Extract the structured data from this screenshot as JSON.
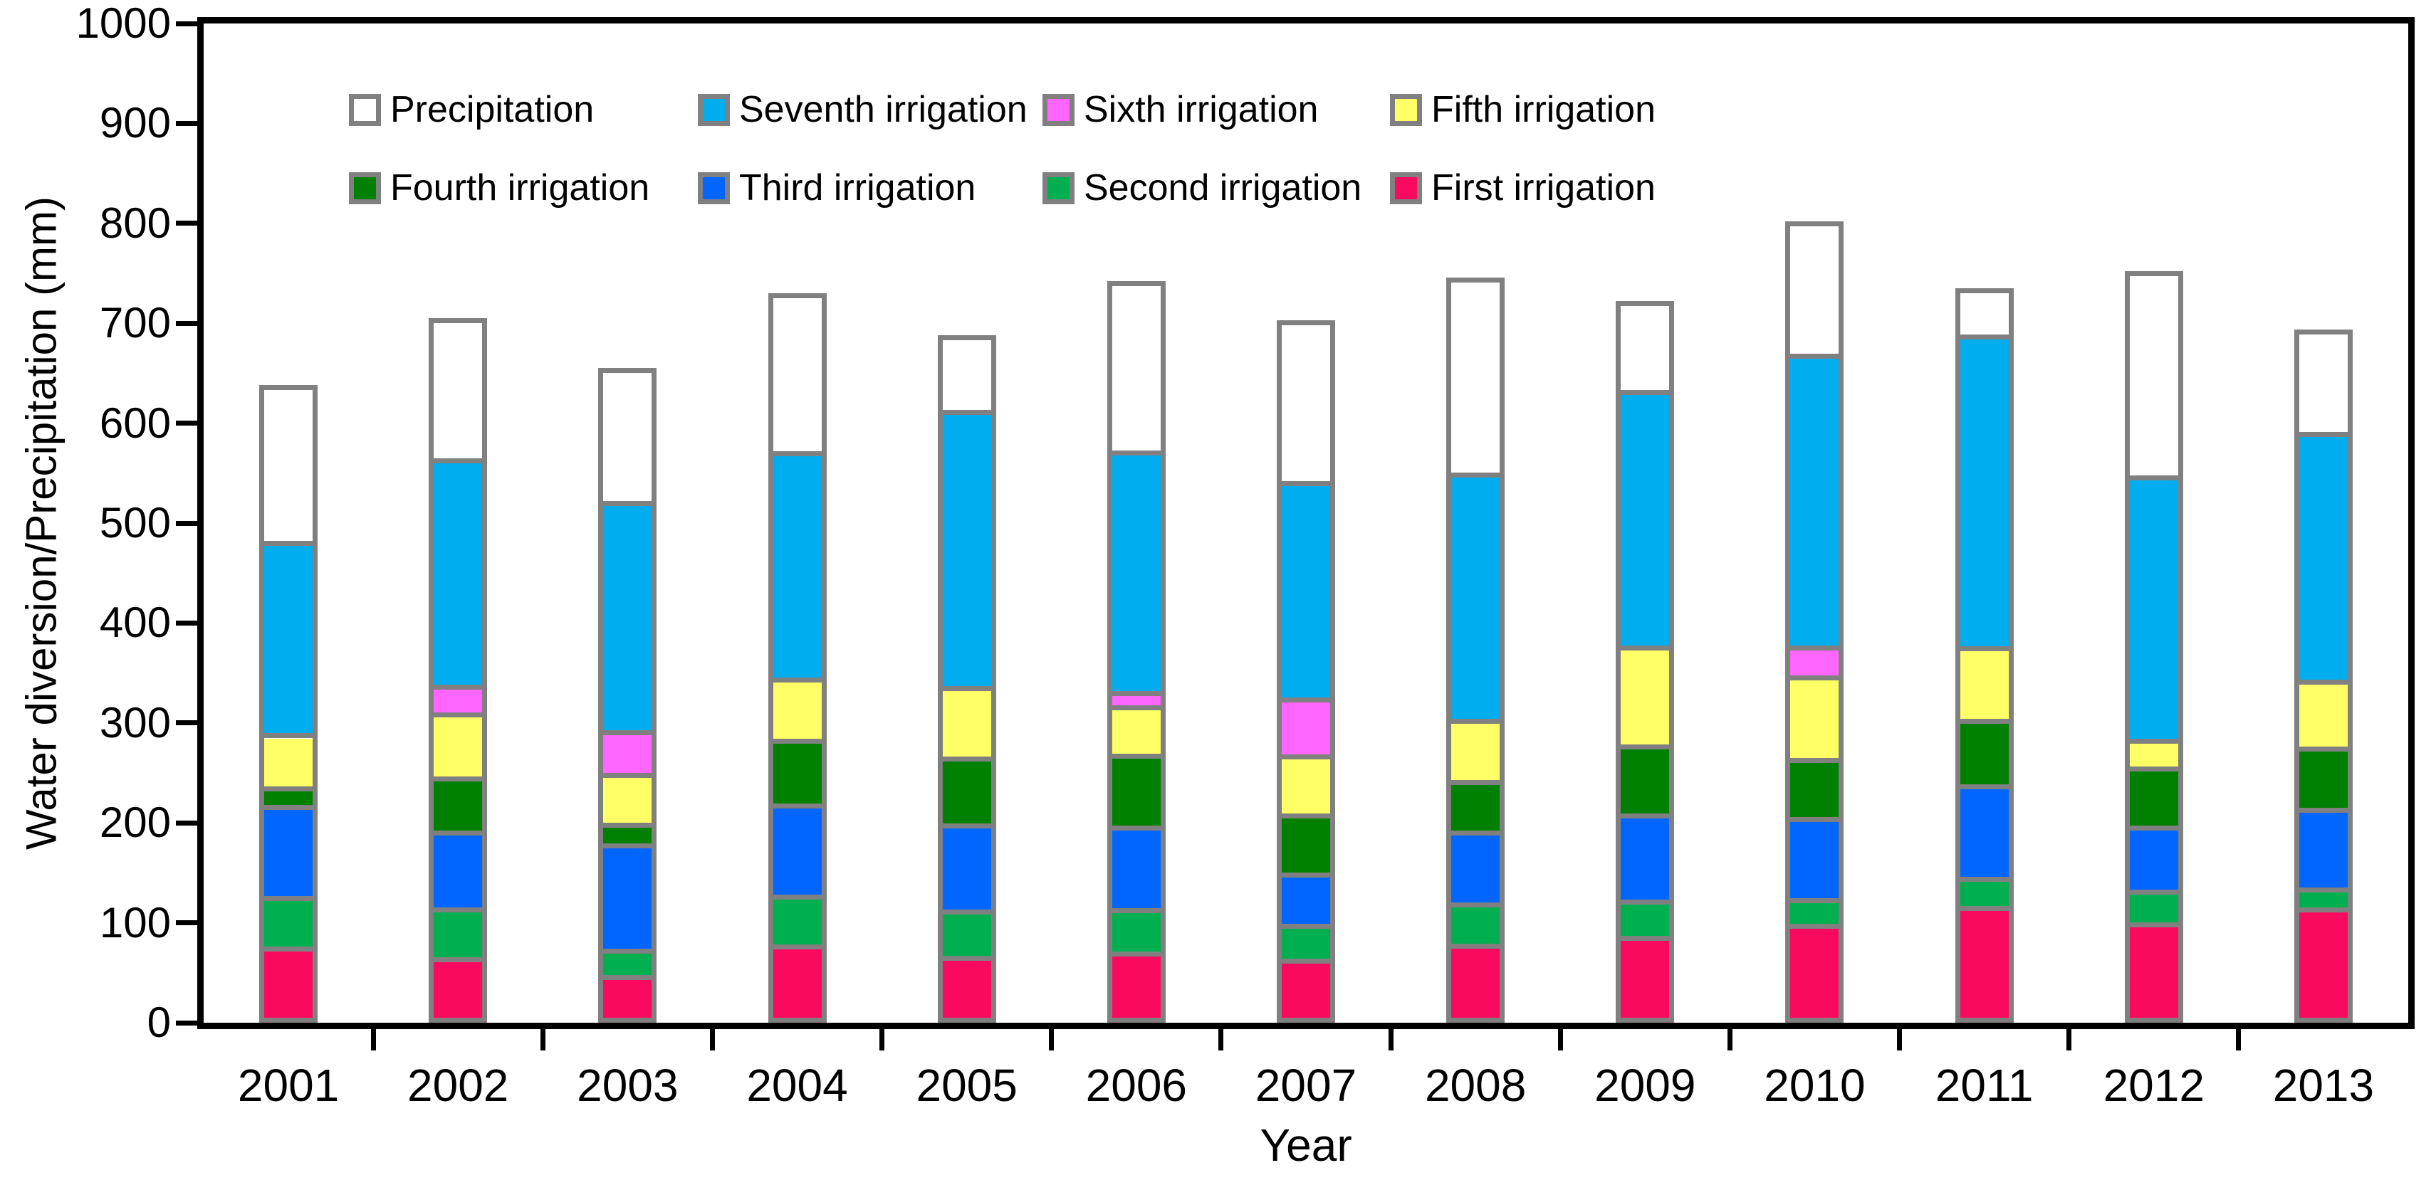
{
  "chart": {
    "y_axis_title": "Water diversion/Precipitation (mm)",
    "x_axis_title": "Year"
  },
  "chart_data": {
    "type": "bar",
    "stacked": true,
    "title": "",
    "xlabel": "Year",
    "ylabel": "Water diversion/Precipitation (mm)",
    "ylim": [
      0,
      1000
    ],
    "y_tick_step": 100,
    "y_tick_labels": [
      "0",
      "100",
      "200",
      "300",
      "400",
      "500",
      "600",
      "700",
      "800",
      "900",
      "1000"
    ],
    "grid": false,
    "legend_position": "top inside plot, two rows",
    "background": "#FFFFFF",
    "axis_color": "#000000",
    "bar_border_color": "#808080",
    "categories": [
      "2001",
      "2002",
      "2003",
      "2004",
      "2005",
      "2006",
      "2007",
      "2008",
      "2009",
      "2010",
      "2011",
      "2012",
      "2013"
    ],
    "series": [
      {
        "name": "First irrigation",
        "color": "#FA0A5E",
        "values": [
          67,
          56,
          38,
          69,
          58,
          62,
          55,
          70,
          78,
          90,
          108,
          92,
          107
        ]
      },
      {
        "name": "Second irrigation",
        "color": "#00B050",
        "values": [
          52,
          51,
          27,
          51,
          47,
          44,
          35,
          42,
          37,
          26,
          30,
          33,
          20
        ]
      },
      {
        "name": "Third irrigation",
        "color": "#0066FF",
        "values": [
          92,
          78,
          107,
          92,
          87,
          84,
          52,
          73,
          87,
          82,
          94,
          65,
          81
        ]
      },
      {
        "name": "Fourth irrigation",
        "color": "#008000",
        "values": [
          19,
          55,
          21,
          66,
          68,
          73,
          60,
          51,
          70,
          60,
          66,
          60,
          62
        ]
      },
      {
        "name": "Fifth irrigation",
        "color": "#FFFF66",
        "values": [
          54,
          65,
          51,
          62,
          72,
          49,
          60,
          62,
          101,
          84,
          74,
          28,
          68
        ]
      },
      {
        "name": "Sixth irrigation",
        "color": "#FF66FF",
        "values": [
          0,
          28,
          43,
          0,
          0,
          14,
          58,
          0,
          0,
          30,
          0,
          0,
          0
        ]
      },
      {
        "name": "Seventh irrigation",
        "color": "#00AEEF",
        "values": [
          196,
          230,
          233,
          230,
          280,
          244,
          220,
          250,
          259,
          296,
          316,
          267,
          252
        ]
      },
      {
        "name": "Precipitation",
        "color": "#FFFFFF",
        "values": [
          158,
          142,
          135,
          160,
          76,
          172,
          163,
          198,
          90,
          134,
          47,
          207,
          104
        ]
      }
    ],
    "totals": [
      638,
      705,
      655,
      730,
      688,
      742,
      703,
      746,
      722,
      802,
      735,
      752,
      694
    ],
    "legend_rows": [
      [
        "Precipitation",
        "Seventh irrigation",
        "Sixth irrigation",
        "Fifth irrigation"
      ],
      [
        "Fourth irrigation",
        "Third irrigation",
        "Second irrigation",
        "First irrigation"
      ]
    ]
  }
}
